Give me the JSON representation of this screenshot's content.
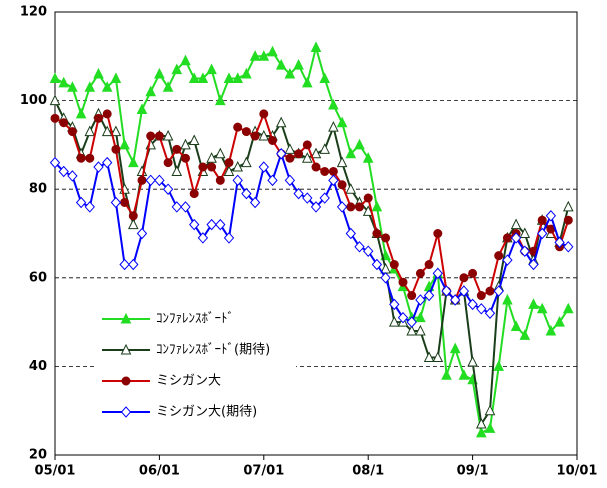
{
  "chart_data": {
    "type": "line",
    "categories": [
      "05/01",
      null,
      null,
      null,
      null,
      null,
      null,
      null,
      null,
      null,
      null,
      null,
      "06/01",
      null,
      null,
      null,
      null,
      null,
      null,
      null,
      null,
      null,
      null,
      null,
      "07/01",
      null,
      null,
      null,
      null,
      null,
      null,
      null,
      null,
      null,
      null,
      null,
      "08/1",
      null,
      null,
      null,
      null,
      null,
      null,
      null,
      null,
      null,
      null,
      null,
      "09/1",
      null,
      null,
      null,
      null,
      null,
      null,
      null,
      null,
      null,
      null,
      null,
      "10/01"
    ],
    "series": [
      {
        "name": "ｺﾝﾌｧﾚﾝｽﾎﾞｰﾄﾞ",
        "color": "#22dd22",
        "marker": "triangle-filled",
        "values": [
          105,
          104,
          103,
          97,
          103,
          106,
          103,
          105,
          90,
          86,
          98,
          102,
          106,
          103,
          107,
          109,
          105,
          105,
          107,
          100,
          105,
          105,
          106,
          110,
          110,
          111,
          108,
          106,
          108,
          104,
          112,
          105,
          99,
          95,
          88,
          90,
          87,
          76,
          65,
          62,
          58,
          51,
          51,
          58,
          61,
          38,
          44,
          38,
          37,
          25,
          26,
          40,
          55,
          49,
          47,
          54,
          53,
          48,
          50,
          53,
          null
        ]
      },
      {
        "name": "ｺﾝﾌｧﾚﾝｽﾎﾞｰﾄﾞ(期待)",
        "color": "#1a3d1a",
        "marker": "triangle-open",
        "values": [
          100,
          96,
          94,
          88,
          93,
          97,
          93,
          93,
          80,
          72,
          84,
          90,
          92,
          92,
          84,
          90,
          91,
          84,
          87,
          88,
          84,
          85,
          86,
          93,
          92,
          92,
          95,
          89,
          88,
          87,
          88,
          89,
          94,
          86,
          80,
          77,
          75,
          70,
          62,
          50,
          50,
          48,
          48,
          42,
          42,
          57,
          55,
          57,
          41,
          27,
          30,
          58,
          69,
          72,
          70,
          64,
          73,
          70,
          68,
          76,
          null
        ]
      },
      {
        "name": "ミシガン大",
        "color": "#cc0000",
        "marker": "circle",
        "values": [
          96,
          95,
          93,
          87,
          87,
          96,
          97,
          89,
          77,
          74,
          82,
          92,
          92,
          86,
          89,
          87,
          79,
          85,
          85,
          82,
          86,
          94,
          93,
          92,
          97,
          91,
          88,
          87,
          88,
          90,
          85,
          84,
          84,
          81,
          76,
          76,
          78,
          70,
          69,
          63,
          59,
          56,
          61,
          63,
          70,
          57,
          55,
          60,
          61,
          56,
          57,
          65,
          69,
          70,
          66,
          66,
          73,
          71,
          67,
          73,
          null
        ]
      },
      {
        "name": "ミシガン大(期待)",
        "color": "#0000ff",
        "marker": "diamond-open",
        "values": [
          86,
          84,
          83,
          77,
          76,
          85,
          86,
          77,
          63,
          63,
          70,
          82,
          82,
          80,
          76,
          76,
          72,
          69,
          72,
          72,
          69,
          82,
          79,
          77,
          85,
          82,
          88,
          82,
          79,
          78,
          76,
          78,
          82,
          76,
          70,
          67,
          66,
          63,
          60,
          54,
          51,
          50,
          55,
          56,
          61,
          57,
          55,
          57,
          54,
          53,
          52,
          57,
          64,
          69,
          66,
          63,
          70,
          74,
          68,
          67,
          null
        ]
      }
    ],
    "ylim": [
      20,
      120
    ],
    "yticks": [
      20,
      40,
      60,
      80,
      100,
      120
    ],
    "grid": true,
    "legend": "center-left"
  }
}
